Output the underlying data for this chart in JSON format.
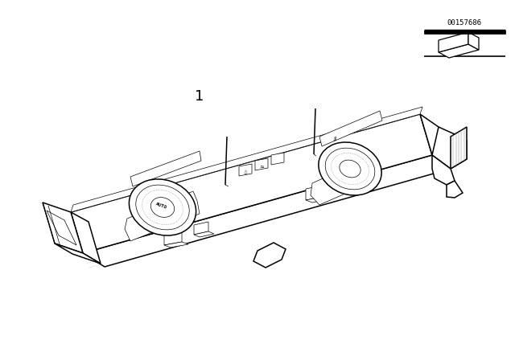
{
  "background_color": "#ffffff",
  "line_color": "#000000",
  "part_number": "1",
  "diagram_id": "00157686",
  "figure_width": 6.4,
  "figure_height": 4.48,
  "dpi": 100,
  "lw_main": 1.1,
  "lw_thin": 0.5,
  "lw_dot": 0.4,
  "hatch_color": "#aaaaaa",
  "dot_color": "#888888"
}
